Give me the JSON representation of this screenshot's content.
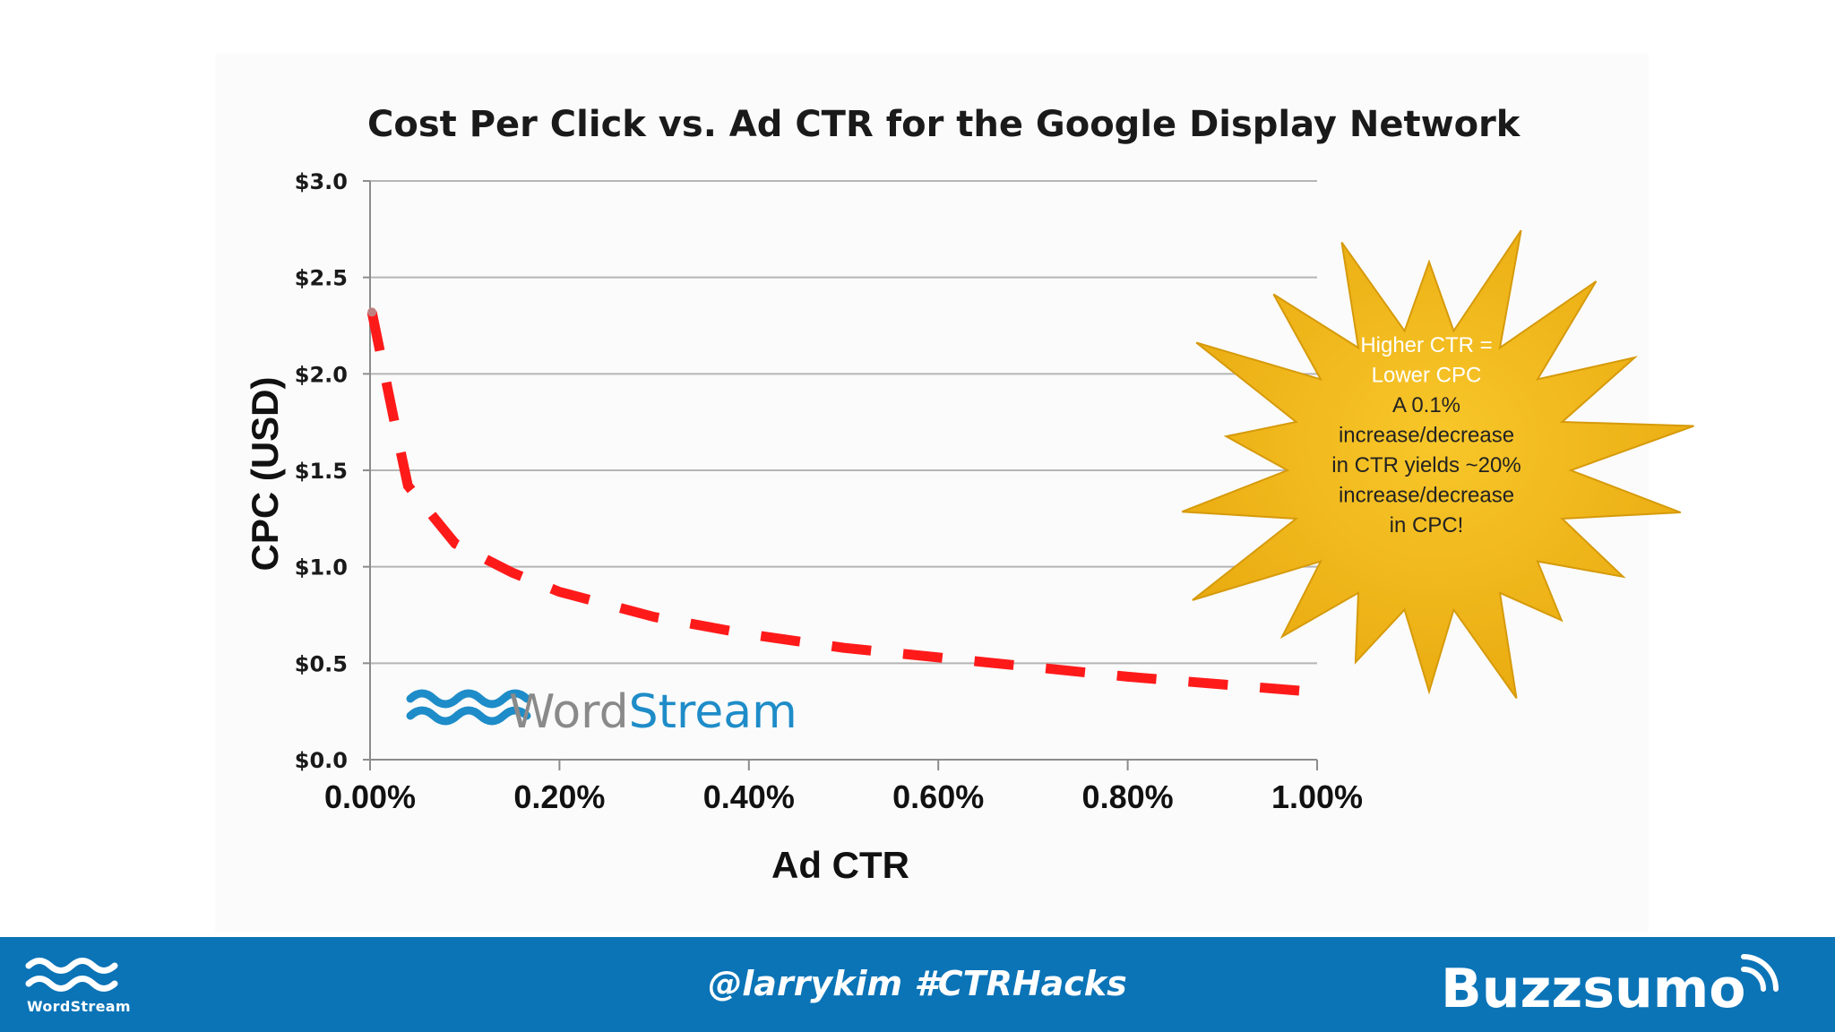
{
  "chart_data": {
    "type": "line",
    "title": "Cost Per Click vs. Ad CTR for the Google Display Network",
    "xlabel": "Ad CTR",
    "ylabel": "CPC (USD)",
    "x_tick_labels": [
      "0.00%",
      "0.20%",
      "0.40%",
      "0.60%",
      "0.80%",
      "1.00%"
    ],
    "y_tick_labels": [
      "$0.0",
      "$0.5",
      "$1.0",
      "$1.5",
      "$2.0",
      "$2.5",
      "$3.0"
    ],
    "xlim": [
      0,
      1.0
    ],
    "ylim": [
      0,
      3.0
    ],
    "grid": "horizontal",
    "series": [
      {
        "x": [
          0.002,
          0.03,
          0.04,
          0.05,
          0.09,
          0.15,
          0.2,
          0.3,
          0.4,
          0.5,
          0.6,
          0.7,
          0.8,
          0.9,
          1.0
        ],
        "values": [
          2.32,
          1.65,
          1.42,
          1.36,
          1.12,
          0.97,
          0.87,
          0.74,
          0.65,
          0.58,
          0.53,
          0.48,
          0.43,
          0.39,
          0.35
        ],
        "color": "#ff1a1a",
        "style": "dashed"
      }
    ],
    "annotation": {
      "lines": [
        "Higher CTR =",
        "Lower CPC",
        "A 0.1%",
        "increase/decrease",
        "in CTR yields ~20%",
        "increase/decrease",
        "in CPC!"
      ],
      "fill_color": "#f2b416"
    }
  },
  "watermark": {
    "word_part1": "Word",
    "word_part2": "Stream"
  },
  "footer": {
    "left_logo_text": "WordStream",
    "handle": "@larrykim #CTRHacks",
    "right_brand": "Buzzsumo",
    "background_color": "#0b74b7"
  },
  "colors": {
    "series": "#ff1a1a",
    "wordstream_blue": "#1e8cc8",
    "wordstream_gray": "#8a8a8a",
    "footer": "#0b74b7"
  }
}
